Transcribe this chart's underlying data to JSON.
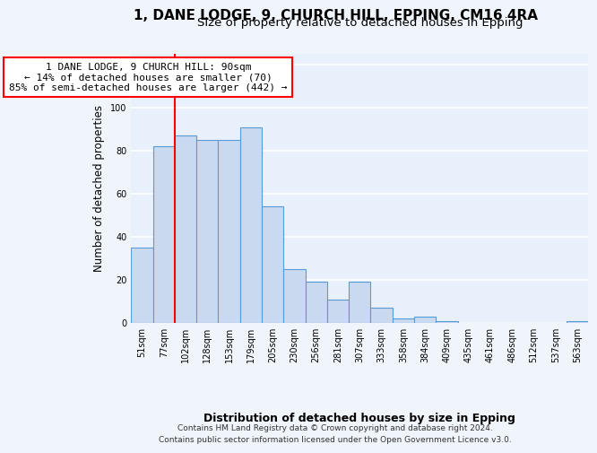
{
  "title1": "1, DANE LODGE, 9, CHURCH HILL, EPPING, CM16 4RA",
  "title2": "Size of property relative to detached houses in Epping",
  "xlabel": "Distribution of detached houses by size in Epping",
  "ylabel": "Number of detached properties",
  "categories": [
    "51sqm",
    "77sqm",
    "102sqm",
    "128sqm",
    "153sqm",
    "179sqm",
    "205sqm",
    "230sqm",
    "256sqm",
    "281sqm",
    "307sqm",
    "333sqm",
    "358sqm",
    "384sqm",
    "409sqm",
    "435sqm",
    "461sqm",
    "486sqm",
    "512sqm",
    "537sqm",
    "563sqm"
  ],
  "values": [
    35,
    82,
    87,
    85,
    85,
    91,
    54,
    25,
    19,
    11,
    19,
    7,
    2,
    3,
    1,
    0,
    0,
    0,
    0,
    0,
    1
  ],
  "bar_color": "#c9d9f0",
  "bar_edge_color": "#5b9bd5",
  "red_line_x": 1.5,
  "annotation_text": "1 DANE LODGE, 9 CHURCH HILL: 90sqm\n← 14% of detached houses are smaller (70)\n85% of semi-detached houses are larger (442) →",
  "ylim": [
    0,
    125
  ],
  "yticks": [
    0,
    20,
    40,
    60,
    80,
    100,
    120
  ],
  "axes_facecolor": "#e8f0fb",
  "fig_facecolor": "#f0f4fb",
  "footer": "Contains HM Land Registry data © Crown copyright and database right 2024.\nContains public sector information licensed under the Open Government Licence v3.0.",
  "grid_color": "#ffffff",
  "title1_fontsize": 11,
  "title2_fontsize": 9.5,
  "xlabel_fontsize": 9,
  "ylabel_fontsize": 8.5,
  "tick_fontsize": 7,
  "annotation_fontsize": 8
}
